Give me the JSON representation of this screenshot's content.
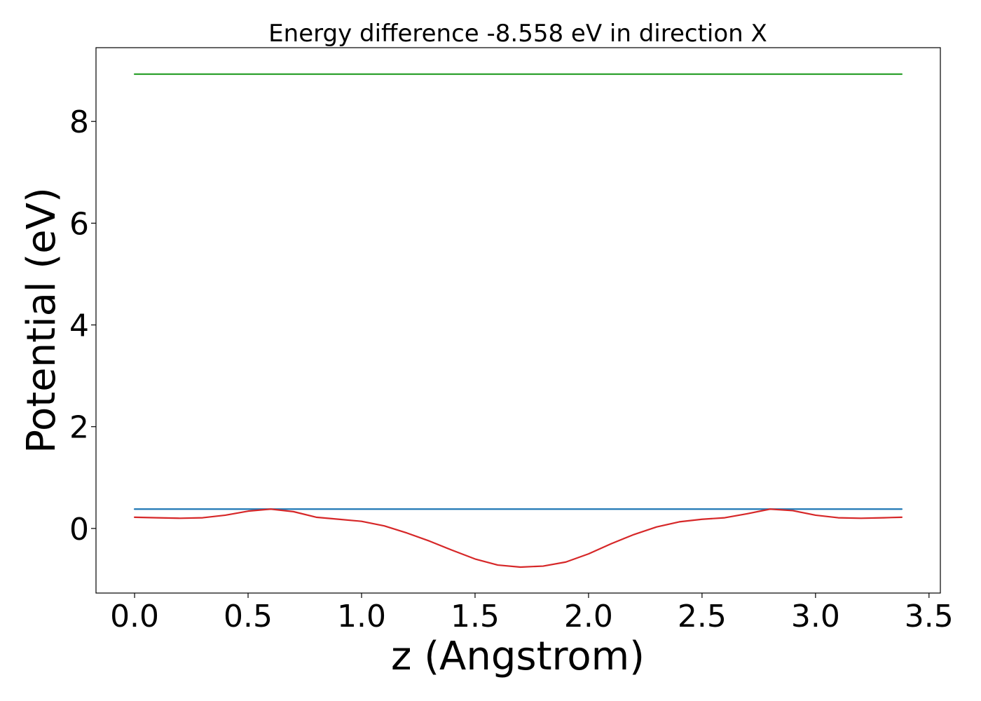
{
  "chart_data": {
    "type": "line",
    "title": "Energy difference -8.558 eV in direction X",
    "xlabel": "z (Angstrom)",
    "ylabel": "Potential (eV)",
    "xlim": [
      -0.17,
      3.55
    ],
    "ylim": [
      -1.27,
      9.45
    ],
    "xticks": [
      0.0,
      0.5,
      1.0,
      1.5,
      2.0,
      2.5,
      3.0,
      3.5
    ],
    "xtick_labels": [
      "0.0",
      "0.5",
      "1.0",
      "1.5",
      "2.0",
      "2.5",
      "3.0",
      "3.5"
    ],
    "yticks": [
      0,
      2,
      4,
      6,
      8
    ],
    "ytick_labels": [
      "0",
      "2",
      "4",
      "6",
      "8"
    ],
    "grid": false,
    "series": [
      {
        "color": "#2ca02c",
        "x": [
          0.0,
          3.38
        ],
        "y": [
          8.93,
          8.93
        ]
      },
      {
        "color": "#1f77b4",
        "x": [
          0.0,
          3.38
        ],
        "y": [
          0.38,
          0.38
        ]
      },
      {
        "color": "#d62728",
        "x": [
          0.0,
          0.1,
          0.2,
          0.3,
          0.4,
          0.5,
          0.6,
          0.7,
          0.8,
          0.9,
          1.0,
          1.1,
          1.2,
          1.3,
          1.4,
          1.5,
          1.6,
          1.7,
          1.8,
          1.9,
          2.0,
          2.1,
          2.2,
          2.3,
          2.4,
          2.5,
          2.6,
          2.7,
          2.8,
          2.9,
          3.0,
          3.1,
          3.2,
          3.3,
          3.38
        ],
        "y": [
          0.22,
          0.21,
          0.2,
          0.21,
          0.26,
          0.34,
          0.38,
          0.33,
          0.22,
          0.18,
          0.14,
          0.05,
          -0.09,
          -0.25,
          -0.43,
          -0.6,
          -0.72,
          -0.76,
          -0.74,
          -0.66,
          -0.5,
          -0.3,
          -0.12,
          0.03,
          0.13,
          0.18,
          0.21,
          0.29,
          0.38,
          0.35,
          0.26,
          0.21,
          0.2,
          0.21,
          0.22
        ]
      }
    ]
  }
}
